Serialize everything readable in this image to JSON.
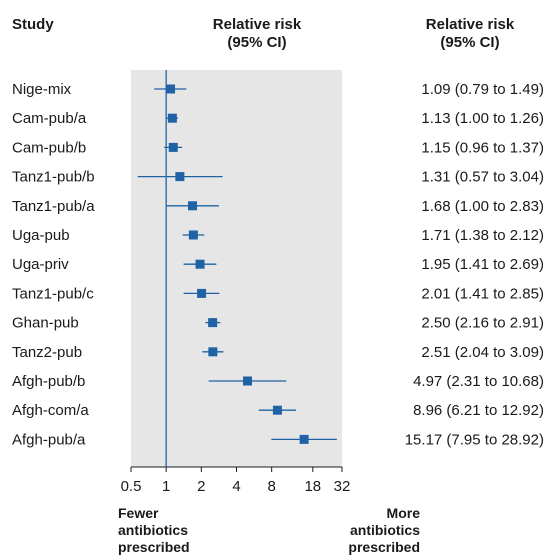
{
  "headers": {
    "study": "Study",
    "rr_line1": "Relative risk",
    "rr_line2": "(95% CI)",
    "rr_right_line1": "Relative risk",
    "rr_right_line2": "(95% CI)"
  },
  "labels": {
    "left_1": "Fewer",
    "left_2": "antibiotics",
    "left_3": "prescribed",
    "right_1": "More",
    "right_2": "antibiotics",
    "right_3": "prescribed"
  },
  "colors": {
    "marker": "#1f63a6",
    "panel": "#e6e6e6",
    "axis": "#1a1a1a"
  },
  "chart_data": {
    "type": "forest",
    "x_scale": "log2",
    "xlim": [
      0.5,
      32
    ],
    "x_ticks": [
      0.5,
      1,
      2,
      4,
      8,
      18,
      32
    ],
    "x_tick_labels": [
      "0.5",
      "1",
      "2",
      "4",
      "8",
      "18",
      "32"
    ],
    "reference_line": 1,
    "studies": [
      {
        "study": "Nige-mix",
        "rr": 1.09,
        "lo": 0.79,
        "hi": 1.49,
        "ci_text": "1.09 (0.79 to 1.49)"
      },
      {
        "study": "Cam-pub/a",
        "rr": 1.13,
        "lo": 1.0,
        "hi": 1.26,
        "ci_text": "1.13 (1.00 to 1.26)"
      },
      {
        "study": "Cam-pub/b",
        "rr": 1.15,
        "lo": 0.96,
        "hi": 1.37,
        "ci_text": "1.15 (0.96 to 1.37)"
      },
      {
        "study": "Tanz1-pub/b",
        "rr": 1.31,
        "lo": 0.57,
        "hi": 3.04,
        "ci_text": "1.31 (0.57 to 3.04)"
      },
      {
        "study": "Tanz1-pub/a",
        "rr": 1.68,
        "lo": 1.0,
        "hi": 2.83,
        "ci_text": "1.68 (1.00 to 2.83)"
      },
      {
        "study": "Uga-pub",
        "rr": 1.71,
        "lo": 1.38,
        "hi": 2.12,
        "ci_text": "1.71 (1.38 to 2.12)"
      },
      {
        "study": "Uga-priv",
        "rr": 1.95,
        "lo": 1.41,
        "hi": 2.69,
        "ci_text": "1.95 (1.41 to 2.69)"
      },
      {
        "study": "Tanz1-pub/c",
        "rr": 2.01,
        "lo": 1.41,
        "hi": 2.85,
        "ci_text": "2.01 (1.41 to 2.85)"
      },
      {
        "study": "Ghan-pub",
        "rr": 2.5,
        "lo": 2.16,
        "hi": 2.91,
        "ci_text": "2.50 (2.16 to 2.91)"
      },
      {
        "study": "Tanz2-pub",
        "rr": 2.51,
        "lo": 2.04,
        "hi": 3.09,
        "ci_text": "2.51 (2.04 to 3.09)"
      },
      {
        "study": "Afgh-pub/b",
        "rr": 4.97,
        "lo": 2.31,
        "hi": 10.68,
        "ci_text": "4.97 (2.31 to 10.68)"
      },
      {
        "study": "Afgh-com/a",
        "rr": 8.96,
        "lo": 6.21,
        "hi": 12.92,
        "ci_text": "8.96 (6.21 to 12.92)"
      },
      {
        "study": "Afgh-pub/a",
        "rr": 15.17,
        "lo": 7.95,
        "hi": 28.92,
        "ci_text": "15.17 (7.95 to 28.92)"
      }
    ]
  }
}
